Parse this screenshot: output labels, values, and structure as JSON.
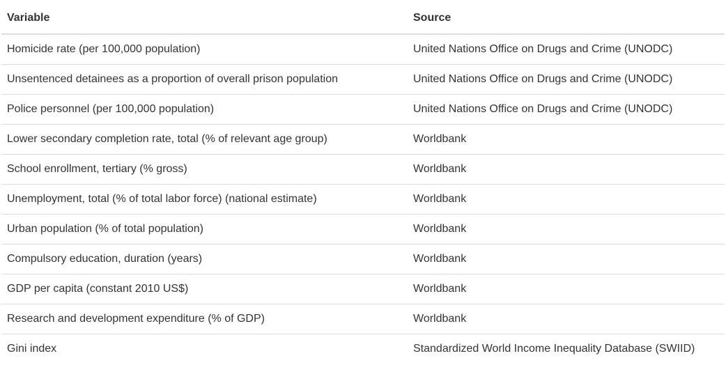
{
  "table": {
    "headers": {
      "variable": "Variable",
      "source": "Source"
    },
    "rows": [
      {
        "variable": "Homicide rate (per 100,000 population)",
        "source": "United Nations Office on Drugs and Crime (UNODC)"
      },
      {
        "variable": "Unsentenced detainees as a proportion of overall prison population",
        "source": "United Nations Office on Drugs and Crime (UNODC)"
      },
      {
        "variable": "Police personnel (per 100,000 population)",
        "source": "United Nations Office on Drugs and Crime (UNODC)"
      },
      {
        "variable": "Lower secondary completion rate, total (% of relevant age group)",
        "source": "Worldbank"
      },
      {
        "variable": "School enrollment, tertiary (% gross)",
        "source": "Worldbank"
      },
      {
        "variable": "Unemployment, total (% of total labor force) (national estimate)",
        "source": "Worldbank"
      },
      {
        "variable": "Urban population (% of total population)",
        "source": "Worldbank"
      },
      {
        "variable": "Compulsory education, duration (years)",
        "source": "Worldbank"
      },
      {
        "variable": "GDP per capita (constant 2010 US$)",
        "source": "Worldbank"
      },
      {
        "variable": "Research and development expenditure (% of GDP)",
        "source": "Worldbank"
      },
      {
        "variable": "Gini index",
        "source": "Standardized World Income Inequality Database (SWIID)"
      }
    ]
  }
}
